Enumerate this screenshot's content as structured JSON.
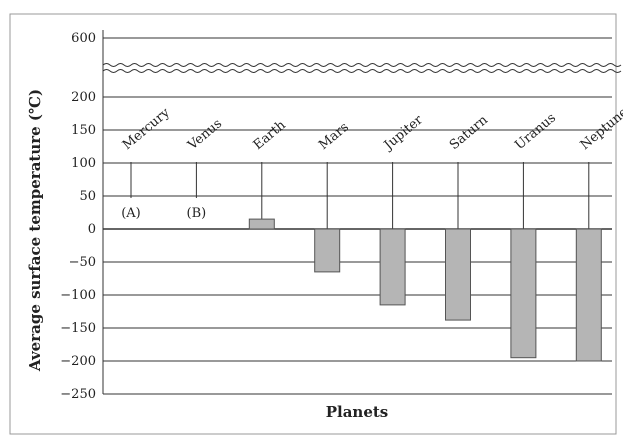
{
  "chart_data": {
    "type": "bar",
    "title": "",
    "xlabel": "Planets",
    "ylabel": "Average surface temperature (℃)",
    "categories": [
      "Mercury",
      "Venus",
      "Earth",
      "Mars",
      "Jupiter",
      "Saturn",
      "Uranus",
      "Neptune"
    ],
    "values": [
      null,
      null,
      15,
      -65,
      -115,
      -138,
      -195,
      -200
    ],
    "unlabeled_markers": {
      "Mercury": "(A)",
      "Venus": "(B)"
    },
    "y_ticks_lower": [
      200,
      150,
      100,
      50,
      0,
      -50,
      -100,
      -150,
      -200,
      -250
    ],
    "y_ticks_upper": [
      600
    ],
    "ylim": [
      -250,
      600
    ],
    "axis_break": "between 200 and 600",
    "grid": true,
    "colors": {
      "bar_fill": "#b5b5b5",
      "bar_stroke": "#555555",
      "grid": "#333333"
    }
  }
}
